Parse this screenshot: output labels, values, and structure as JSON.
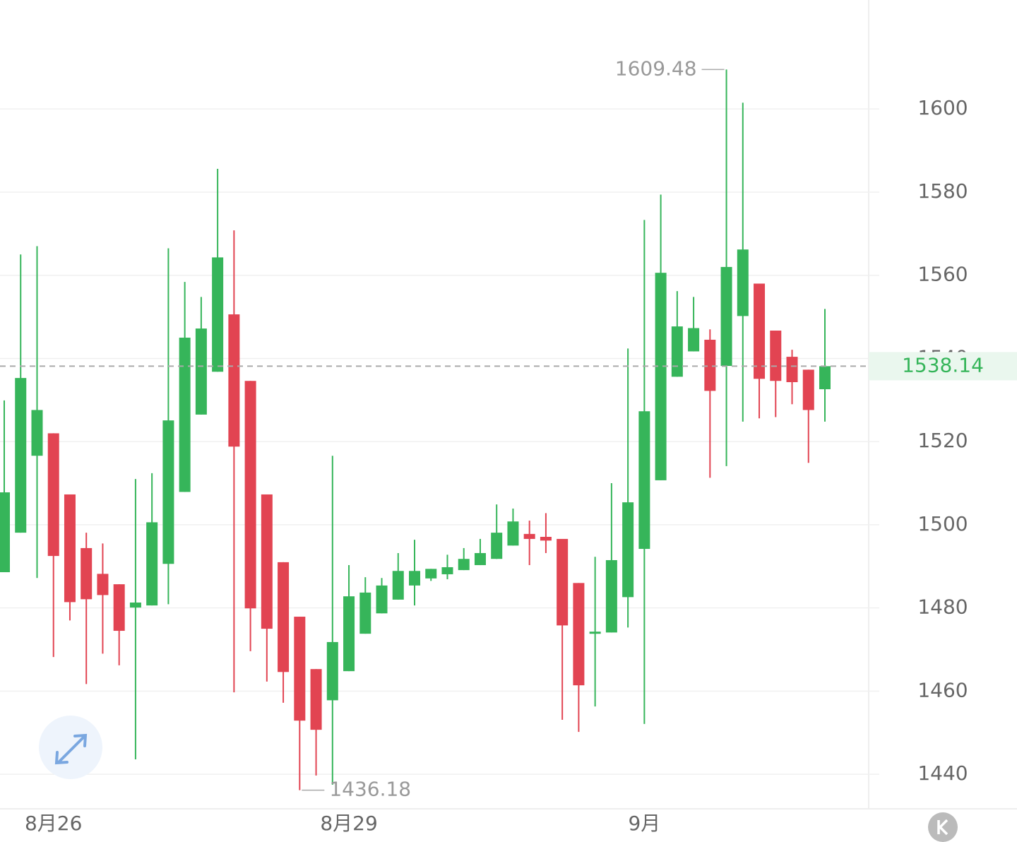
{
  "chart_data": {
    "type": "candlestick",
    "categories": [
      null,
      null,
      null,
      "8月26",
      null,
      null,
      null,
      null,
      null,
      null,
      null,
      null,
      null,
      null,
      null,
      null,
      null,
      null,
      null,
      null,
      null,
      "8月29",
      null,
      null,
      null,
      null,
      null,
      null,
      null,
      null,
      null,
      null,
      null,
      null,
      null,
      null,
      null,
      null,
      null,
      "9月",
      null,
      null,
      null,
      null,
      null,
      null,
      null,
      null,
      null,
      null,
      null
    ],
    "open": [
      1488.6,
      1498.1,
      1516.6,
      1522.0,
      1507.3,
      1494.4,
      1488.2,
      1485.7,
      1480.1,
      1480.6,
      1490.6,
      1507.9,
      1526.5,
      1536.8,
      1550.6,
      1534.6,
      1507.3,
      1491.0,
      1477.9,
      1465.3,
      1457.8,
      1464.8,
      1473.8,
      1478.7,
      1482.0,
      1485.4,
      1487.1,
      1488.1,
      1489.1,
      1490.3,
      1491.8,
      1495.0,
      1497.8,
      1497.1,
      1496.6,
      1486.0,
      1473.8,
      1474.1,
      1482.6,
      1494.2,
      1510.7,
      1535.6,
      1541.7,
      1544.5,
      1538.2,
      1550.2,
      1558.0,
      1546.7,
      1540.4,
      1537.3,
      1532.6
    ],
    "high": [
      1529.9,
      1565.0,
      1567.0,
      1522.0,
      1507.3,
      1498.1,
      1495.5,
      1485.7,
      1511.0,
      1512.4,
      1566.5,
      1558.4,
      1554.8,
      1585.6,
      1570.8,
      1534.6,
      1507.3,
      1491.0,
      1477.9,
      1465.3,
      1516.6,
      1490.3,
      1487.4,
      1487.2,
      1493.2,
      1496.4,
      1489.4,
      1492.8,
      1494.4,
      1496.6,
      1504.9,
      1503.9,
      1501.0,
      1502.8,
      1496.6,
      1486.0,
      1492.3,
      1510.0,
      1542.4,
      1573.3,
      1579.4,
      1556.2,
      1554.8,
      1547.0,
      1609.48,
      1601.5,
      1558.0,
      1546.7,
      1542.1,
      1537.3,
      1551.9
    ],
    "low": [
      1488.6,
      1498.1,
      1487.2,
      1468.2,
      1477.0,
      1461.7,
      1469.0,
      1466.2,
      1443.6,
      1480.6,
      1480.9,
      1507.9,
      1526.5,
      1536.8,
      1459.7,
      1469.6,
      1462.3,
      1457.2,
      1436.18,
      1439.7,
      1437.5,
      1464.8,
      1473.8,
      1478.7,
      1482.0,
      1480.6,
      1486.5,
      1486.9,
      1489.1,
      1490.3,
      1491.8,
      1495.0,
      1490.3,
      1493.2,
      1453.1,
      1450.2,
      1456.3,
      1474.1,
      1475.3,
      1452.1,
      1510.7,
      1535.6,
      1541.7,
      1511.3,
      1514.1,
      1524.8,
      1525.6,
      1525.9,
      1529.0,
      1514.9,
      1524.8
    ],
    "close": [
      1507.8,
      1535.3,
      1527.6,
      1492.5,
      1481.4,
      1482.1,
      1483.1,
      1474.5,
      1481.3,
      1500.6,
      1525.1,
      1545.0,
      1547.2,
      1564.3,
      1518.8,
      1479.9,
      1475.0,
      1464.6,
      1452.9,
      1450.7,
      1471.8,
      1482.8,
      1483.7,
      1485.4,
      1488.9,
      1488.9,
      1489.4,
      1489.8,
      1491.8,
      1493.2,
      1498.1,
      1500.8,
      1496.6,
      1496.2,
      1475.8,
      1461.4,
      1474.3,
      1491.5,
      1505.4,
      1527.3,
      1560.6,
      1547.7,
      1547.3,
      1532.2,
      1562.0,
      1566.2,
      1535.1,
      1534.6,
      1534.3,
      1527.6,
      1538.14
    ],
    "up_color": "#36b55a",
    "down_color": "#e24452",
    "ylim": [
      1431.7,
      1626.2
    ],
    "yticks": [
      1440,
      1460,
      1480,
      1500,
      1520,
      1540,
      1560,
      1580,
      1600
    ],
    "grid": true,
    "max_label": 1609.48,
    "min_label": 1436.18,
    "last_price": 1538.14
  }
}
